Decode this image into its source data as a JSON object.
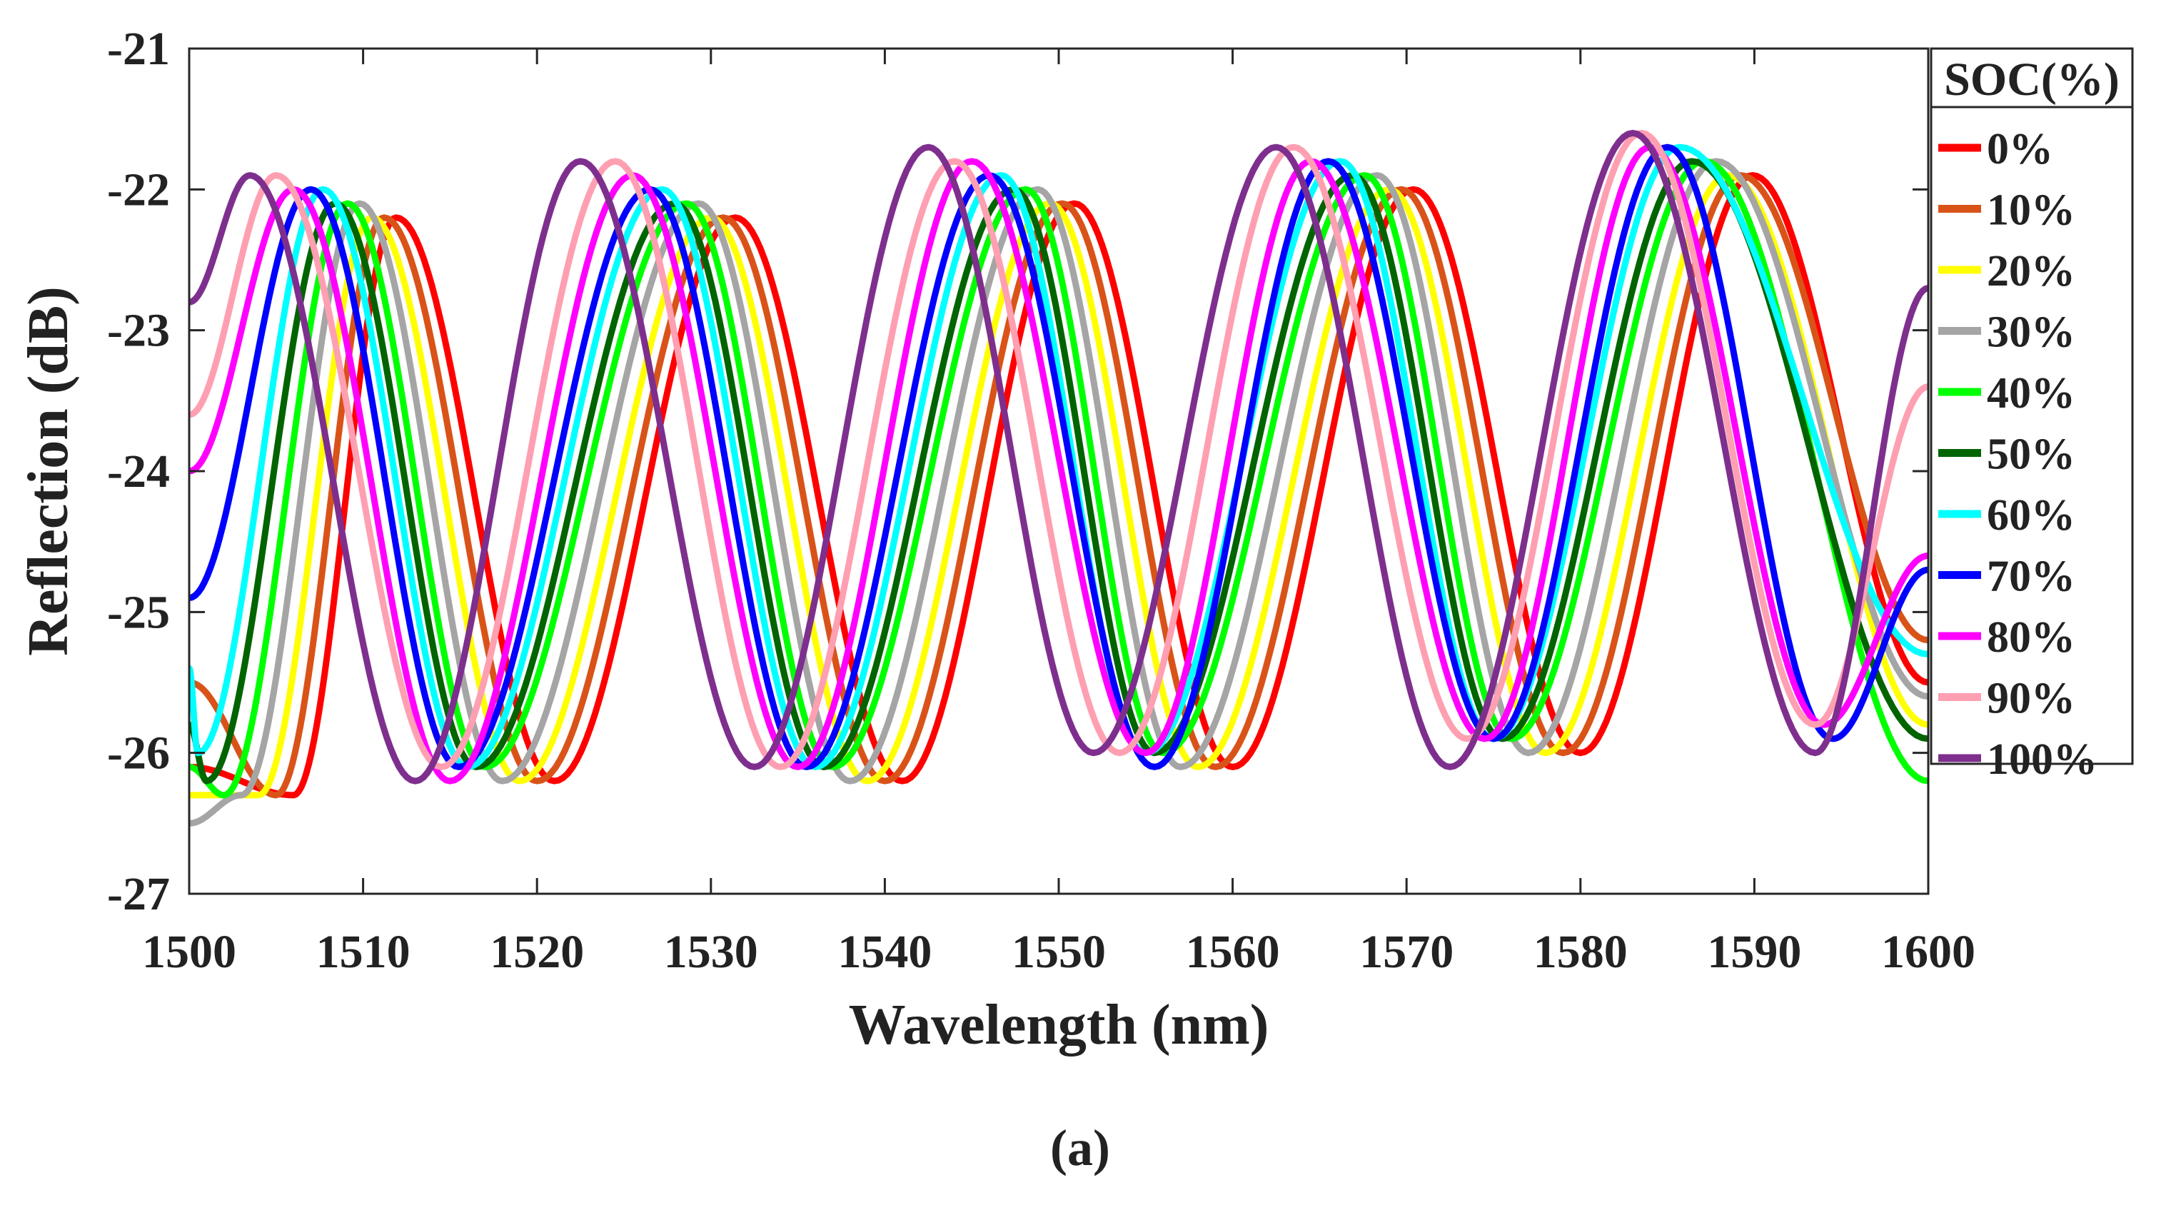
{
  "chart_data": {
    "type": "line",
    "caption": "(a)",
    "xlabel": "Wavelength (nm)",
    "ylabel": "Reflection (dB)",
    "xlim": [
      1500,
      1600
    ],
    "ylim": [
      -27,
      -21
    ],
    "xticks": [
      "1500",
      "1510",
      "1520",
      "1530",
      "1540",
      "1550",
      "1560",
      "1570",
      "1580",
      "1590",
      "1600"
    ],
    "yticks": [
      "-21",
      "-22",
      "-23",
      "-24",
      "-25",
      "-26",
      "-27"
    ],
    "grid": false,
    "legend": {
      "title": "SOC(%)",
      "position": "right-outside-top"
    },
    "model": "sinusoidal fringes, period ~19.5 nm, reflection ≈ -24.1 + 2.1·cos(2π(λ - peak)/19.5) dB; peaks shift to shorter wavelength as SOC increases",
    "series": [
      {
        "name": "0%",
        "color": "#ff0000",
        "x": [
          1500,
          1506,
          1511.9,
          1521,
          1531.4,
          1541,
          1550.9,
          1560,
          1570.4,
          1580,
          1589.9,
          1600
        ],
        "y": [
          -26.1,
          -26.3,
          -22.2,
          -26.2,
          -22.2,
          -26.2,
          -22.1,
          -26.1,
          -22.0,
          -26.0,
          -21.9,
          -25.5
        ]
      },
      {
        "name": "10%",
        "color": "#d95319",
        "x": [
          1500,
          1505,
          1511.2,
          1520,
          1530.7,
          1540,
          1550.2,
          1559,
          1569.7,
          1579,
          1589.2,
          1600
        ],
        "y": [
          -25.5,
          -26.3,
          -22.2,
          -26.2,
          -22.2,
          -26.2,
          -22.1,
          -26.1,
          -22.0,
          -26.0,
          -21.9,
          -25.2
        ]
      },
      {
        "name": "20%",
        "color": "#ffff00",
        "x": [
          1500,
          1504,
          1510.5,
          1519,
          1530,
          1539,
          1549.5,
          1558,
          1569,
          1578,
          1588.5,
          1600
        ],
        "y": [
          -26.3,
          -26.3,
          -22.2,
          -26.2,
          -22.2,
          -26.2,
          -22.1,
          -26.1,
          -22.0,
          -26.0,
          -21.9,
          -25.8
        ]
      },
      {
        "name": "30%",
        "color": "#a5a5a5",
        "x": [
          1500,
          1503,
          1509.8,
          1518,
          1529.3,
          1538,
          1548.8,
          1557,
          1568.3,
          1577,
          1587.8,
          1600
        ],
        "y": [
          -26.5,
          -26.3,
          -22.1,
          -26.2,
          -22.1,
          -26.2,
          -22.0,
          -26.1,
          -21.9,
          -26.0,
          -21.8,
          -25.6
        ]
      },
      {
        "name": "40%",
        "color": "#00ff00",
        "x": [
          1500,
          1502,
          1509.1,
          1517,
          1528.6,
          1537,
          1548.1,
          1556,
          1567.6,
          1576,
          1587.1,
          1600
        ],
        "y": [
          -26.1,
          -26.3,
          -22.1,
          -26.1,
          -22.1,
          -26.1,
          -22.0,
          -26.0,
          -21.9,
          -25.9,
          -21.8,
          -26.2
        ]
      },
      {
        "name": "50%",
        "color": "#006400",
        "x": [
          1500,
          1501,
          1508.4,
          1516.5,
          1527.9,
          1536.5,
          1547.4,
          1555.5,
          1566.9,
          1575.5,
          1586.4,
          1600
        ],
        "y": [
          -25.8,
          -26.2,
          -22.1,
          -26.1,
          -22.1,
          -26.1,
          -22.0,
          -26.0,
          -21.9,
          -25.9,
          -21.8,
          -25.9
        ]
      },
      {
        "name": "60%",
        "color": "#00ffff",
        "x": [
          1500,
          1500.5,
          1507.7,
          1516,
          1527.2,
          1536,
          1546.7,
          1555,
          1566.2,
          1575,
          1585.7,
          1600
        ],
        "y": [
          -25.4,
          -26.0,
          -22.0,
          -26.1,
          -22.0,
          -26.1,
          -21.9,
          -26.0,
          -21.8,
          -25.9,
          -21.7,
          -25.3
        ]
      },
      {
        "name": "70%",
        "color": "#0000ff",
        "x": [
          1500,
          1507,
          1515.5,
          1526.5,
          1535.5,
          1546,
          1555.5,
          1565.5,
          1575,
          1585,
          1594.5,
          1600
        ],
        "y": [
          -24.9,
          -22.0,
          -26.1,
          -22.0,
          -26.1,
          -21.9,
          -26.1,
          -21.8,
          -25.9,
          -21.7,
          -25.9,
          -24.7
        ]
      },
      {
        "name": "80%",
        "color": "#ff00ff",
        "x": [
          1500,
          1506,
          1515,
          1525.5,
          1535,
          1545,
          1555,
          1564.5,
          1574.5,
          1584,
          1594,
          1600
        ],
        "y": [
          -24.0,
          -22.0,
          -26.2,
          -21.9,
          -26.1,
          -21.8,
          -26.0,
          -21.8,
          -25.9,
          -21.7,
          -25.8,
          -24.6
        ]
      },
      {
        "name": "90%",
        "color": "#ff9fb2",
        "x": [
          1500,
          1505,
          1514.5,
          1524.5,
          1534,
          1544,
          1553.5,
          1563.5,
          1573.5,
          1583.5,
          1593.5,
          1600
        ],
        "y": [
          -23.6,
          -21.9,
          -26.1,
          -21.8,
          -26.1,
          -21.8,
          -26.0,
          -21.7,
          -25.9,
          -21.6,
          -25.8,
          -23.4
        ]
      },
      {
        "name": "100%",
        "color": "#7e2f8e",
        "x": [
          1500,
          1503.5,
          1513,
          1522.5,
          1532.5,
          1542.5,
          1552,
          1562.5,
          1572.5,
          1583,
          1593.5,
          1600
        ],
        "y": [
          -22.8,
          -21.9,
          -26.2,
          -21.8,
          -26.1,
          -21.7,
          -26.0,
          -21.7,
          -26.1,
          -21.6,
          -26.0,
          -22.7
        ]
      }
    ]
  }
}
